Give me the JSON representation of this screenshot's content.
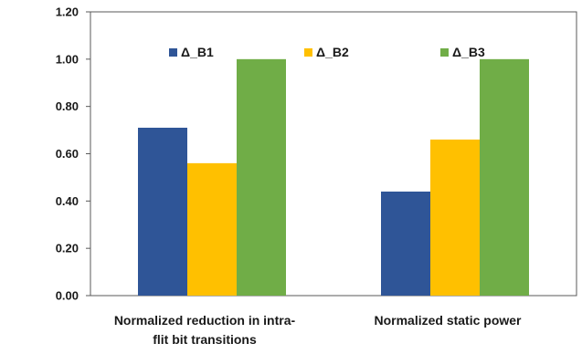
{
  "chart_data": {
    "type": "bar",
    "categories": [
      [
        "Normalized reduction in intra-",
        "flit bit transitions"
      ],
      [
        "Normalized static power"
      ]
    ],
    "series": [
      {
        "name": "Δ_B1",
        "color": "#2F5597",
        "values": [
          0.71,
          0.44
        ]
      },
      {
        "name": "Δ_B2",
        "color": "#FFC000",
        "values": [
          0.56,
          0.66
        ]
      },
      {
        "name": "Δ_B3",
        "color": "#70AD47",
        "values": [
          1.0,
          1.0
        ]
      }
    ],
    "yticks": [
      "0.00",
      "0.20",
      "0.40",
      "0.60",
      "0.80",
      "1.00",
      "1.20"
    ],
    "ylim": [
      0,
      1.2
    ],
    "legend_position": "top",
    "grid": false
  }
}
